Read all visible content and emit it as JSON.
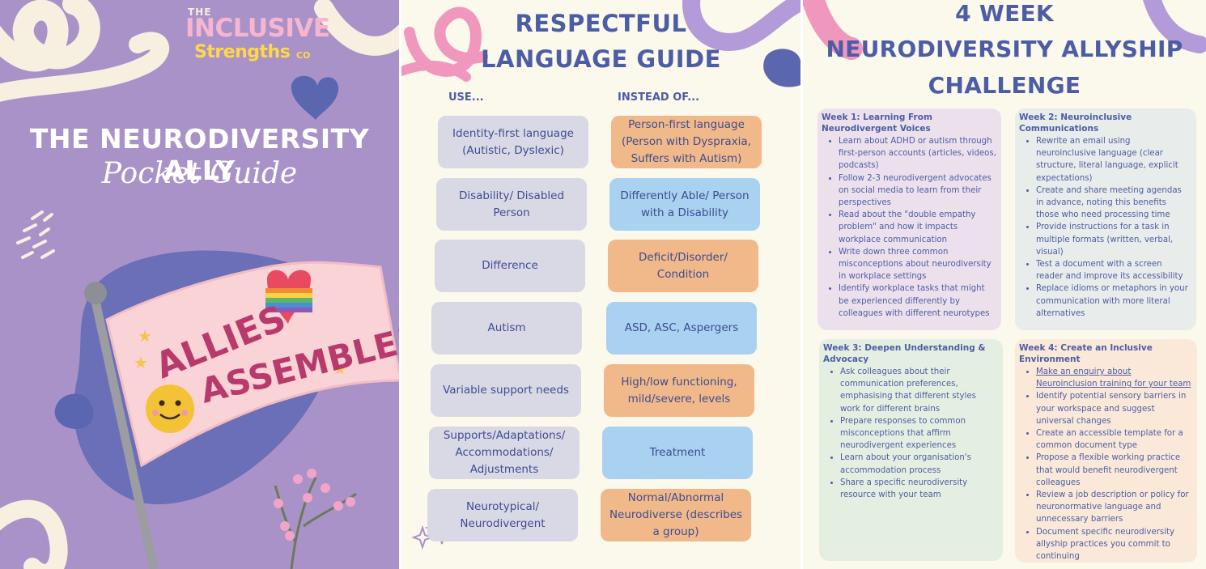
{
  "panel1": {
    "logo": {
      "the": "THE",
      "inclusive": "INCLUSIVE",
      "strengths": "Strengths",
      "co": "CO"
    },
    "title": "THE NEURODIVERSITY ALLY",
    "subtitle": "Pocket Guide",
    "flag_text": [
      "ALLIES",
      "ASSEMBLE!"
    ]
  },
  "panel2": {
    "title_lines": [
      "RESPECTFUL",
      "LANGUAGE GUIDE"
    ],
    "use_header": "USE...",
    "instead_header": "INSTEAD OF...",
    "rows": [
      {
        "use": "Identity-first language (Autistic, Dyslexic)",
        "instead": "Person-first language (Person with Dyspraxia, Suffers with Autism)"
      },
      {
        "use": "Disability/ Disabled Person",
        "instead": "Differently Able/ Person with a Disability"
      },
      {
        "use": "Difference",
        "instead": "Deficit/Disorder/ Condition"
      },
      {
        "use": "Autism",
        "instead": "ASD, ASC, Aspergers"
      },
      {
        "use": "Variable support needs",
        "instead": "High/low functioning, mild/severe, levels"
      },
      {
        "use": "Supports/Adaptations/ Accommodations/ Adjustments",
        "instead": "Treatment"
      },
      {
        "use": "Neurotypical/ Neurodivergent",
        "instead": "Normal/Abnormal Neurodiverse (describes a group)"
      }
    ]
  },
  "panel3": {
    "title_lines": [
      "4 WEEK",
      "NEURODIVERSITY ALLYSHIP",
      "CHALLENGE"
    ],
    "weeks": [
      {
        "title": "Week 1: Learning From Neurodivergent Voices",
        "items": [
          "Learn about ADHD or autism through first-person accounts (articles, videos, podcasts)",
          "Follow 2-3 neurodivergent advocates on social media to learn from their perspectives",
          "Read about the \"double empathy problem\" and how it impacts workplace communication",
          "Write down three common misconceptions about neurodiversity in workplace settings",
          "Identify workplace tasks that might be experienced differently by colleagues with different neurotypes"
        ]
      },
      {
        "title": "Week 2: Neuroinclusive Communications",
        "items": [
          "Rewrite an email using neuroinclusive language (clear structure, literal language, explicit expectations)",
          "Create and share meeting agendas in advance, noting this benefits those who need processing time",
          "Provide instructions for a task in multiple formats (written, verbal, visual)",
          "Test a document with a screen reader and improve its accessibility",
          "Replace idioms or metaphors in your communication with more literal alternatives"
        ]
      },
      {
        "title": "Week 3: Deepen Understanding & Advocacy",
        "items": [
          "Ask colleagues about their communication preferences, emphasising that different styles work for different brains",
          "Prepare responses to common misconceptions that affirm neurodivergent experiences",
          "Learn about your organisation's accommodation process",
          "Share a specific neurodiversity resource with your team"
        ]
      },
      {
        "title": "Week 4:  Create an Inclusive Environment",
        "items": [
          "Make an enquiry about Neuroinclusion training for your team",
          "Identify potential sensory barriers in your workspace and suggest universal changes",
          "Create an accessible template for a common document type",
          "Propose a flexible working practice that would benefit neurodivergent colleagues",
          "Review a job description or policy for neuronormative language and unnecessary barriers",
          "Document specific neurodiversity allyship practices you commit to continuing"
        ]
      }
    ]
  },
  "colors": {
    "lavender": "#a992c8",
    "navy": "#4d5da5",
    "cream": "#fbf8ec",
    "grey_box": "#d9d9e6",
    "orange_box": "#f1b98a",
    "blue_box": "#a9d1f0",
    "pink": "#ef97bd",
    "purple": "#b39ad8"
  }
}
